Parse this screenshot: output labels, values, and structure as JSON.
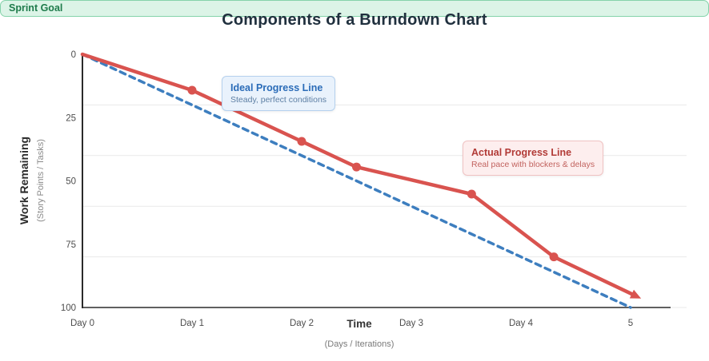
{
  "chart_title": "Components of a Burndown Chart",
  "colors": {
    "ideal_line": "#3d7ebf",
    "actual_line": "#d9534f",
    "gridline": "#e9e9e9",
    "axis": "#2b2b2b",
    "tick_text": "#4d4d4d",
    "sprint_goal_bg": "#dcf4e7",
    "sprint_goal_border": "#85d3aa",
    "sprint_goal_text": "#1e7b4b"
  },
  "chart_data": {
    "type": "line",
    "title": "Components of a Burndown Chart",
    "grid": "horizontal",
    "legend_position": "none",
    "x_axis": {
      "label": "Time",
      "sublabel": "(Days / Iterations)",
      "range": [
        0,
        5
      ],
      "ticks": [
        {
          "value": 0,
          "label": "Day 0"
        },
        {
          "value": 1,
          "label": "Day 1"
        },
        {
          "value": 2,
          "label": "Day 2"
        },
        {
          "value": 3,
          "label": "Day 3"
        },
        {
          "value": 4,
          "label": "Day 4"
        },
        {
          "value": 5,
          "label": "5"
        }
      ]
    },
    "y_axis": {
      "label": "Work Remaining",
      "sublabel": "(Story Points / Tasks)",
      "range": [
        0,
        100
      ],
      "inverted": true,
      "ticks": [
        {
          "value": 0,
          "label": "0"
        },
        {
          "value": 25,
          "label": "25"
        },
        {
          "value": 50,
          "label": "50"
        },
        {
          "value": 75,
          "label": "75"
        },
        {
          "value": 100,
          "label": "100"
        }
      ],
      "gridlines": [
        20,
        40,
        60,
        80,
        100
      ]
    },
    "series": [
      {
        "name": "Ideal Progress Line",
        "color": "#3d7ebf",
        "dashed": true,
        "width": 3.5,
        "markers": false,
        "arrow_end": false,
        "points": [
          [
            0,
            0
          ],
          [
            5,
            100
          ]
        ]
      },
      {
        "name": "Actual Progress Line",
        "color": "#d9534f",
        "dashed": false,
        "width": 4.5,
        "markers": true,
        "arrow_end": true,
        "points": [
          [
            0,
            0
          ],
          [
            1,
            14.2
          ],
          [
            2,
            34.4
          ],
          [
            2.5,
            44.5
          ],
          [
            3.55,
            55.2
          ],
          [
            4.3,
            80
          ],
          [
            5.05,
            95.5
          ]
        ]
      }
    ]
  },
  "annotations": {
    "ideal": {
      "title": "Ideal Progress Line",
      "subtitle": "Steady, perfect conditions"
    },
    "actual": {
      "title": "Actual Progress Line",
      "subtitle": "Real pace with blockers & delays"
    },
    "sprint_goal": {
      "label": "Sprint Goal"
    }
  }
}
